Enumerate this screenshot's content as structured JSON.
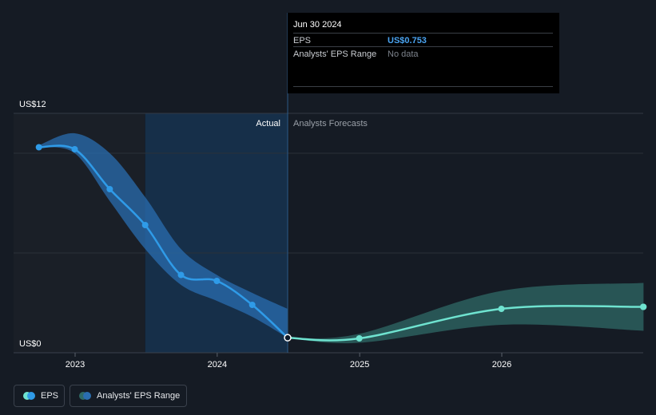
{
  "tooltip": {
    "date": "Jun 30 2024",
    "eps_label": "EPS",
    "eps_value": "US$0.753",
    "range_label": "Analysts' EPS Range",
    "range_value": "No data"
  },
  "regions": {
    "actual_label": "Actual",
    "forecast_label": "Analysts Forecasts"
  },
  "legend": {
    "eps": "EPS",
    "range": "Analysts' EPS Range"
  },
  "colors": {
    "background": "#151b24",
    "eps_line": "#2f9be8",
    "forecast_line": "#6fe3d0",
    "past_band": "#2a6eb0",
    "forecast_band": "#2f6a66",
    "highlight": "#163250"
  },
  "chart_data": {
    "type": "line",
    "ylabel_ticks": [
      "US$12",
      "US$0"
    ],
    "ylim": [
      0,
      12
    ],
    "xlim": [
      "2022-08",
      "2026-12"
    ],
    "x_ticks": [
      "2023",
      "2024",
      "2025",
      "2026"
    ],
    "grid": true,
    "series": [
      {
        "name": "EPS",
        "points": [
          {
            "x": "2022-09-30",
            "y": 10.3
          },
          {
            "x": "2022-12-31",
            "y": 10.2
          },
          {
            "x": "2023-03-31",
            "y": 8.2
          },
          {
            "x": "2023-06-30",
            "y": 6.4
          },
          {
            "x": "2023-09-30",
            "y": 3.9
          },
          {
            "x": "2023-12-31",
            "y": 3.6
          },
          {
            "x": "2024-03-31",
            "y": 2.4
          },
          {
            "x": "2024-06-30",
            "y": 0.753
          }
        ]
      },
      {
        "name": "EPS Forecast",
        "points": [
          {
            "x": "2024-06-30",
            "y": 0.753
          },
          {
            "x": "2024-12-31",
            "y": 0.72
          },
          {
            "x": "2025-12-31",
            "y": 2.2
          },
          {
            "x": "2026-12-31",
            "y": 2.3
          }
        ]
      }
    ],
    "past_range": {
      "x": [
        "2022-09-30",
        "2022-12-31",
        "2023-03-31",
        "2023-06-30",
        "2023-09-30",
        "2023-12-31",
        "2024-03-31",
        "2024-06-30"
      ],
      "high": [
        10.4,
        11.0,
        10.0,
        7.8,
        5.2,
        3.9,
        3.0,
        2.2
      ],
      "low": [
        10.3,
        10.0,
        7.6,
        5.2,
        3.4,
        2.6,
        1.8,
        0.753
      ]
    },
    "forecast_range": {
      "x": [
        "2024-06-30",
        "2024-12-31",
        "2025-12-31",
        "2026-12-31"
      ],
      "high": [
        0.76,
        0.95,
        3.1,
        3.5
      ],
      "low": [
        0.74,
        0.5,
        1.4,
        1.1
      ]
    },
    "highlight_range": [
      "2023-06-30",
      "2024-06-30"
    ],
    "actual_forecast_divider": "2024-06-30"
  }
}
